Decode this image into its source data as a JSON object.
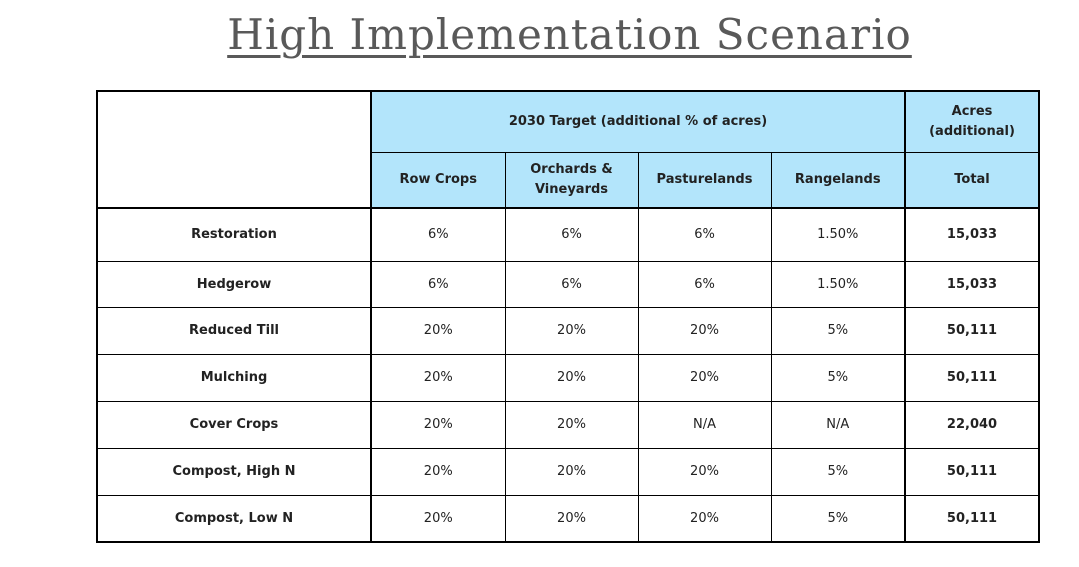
{
  "title": "High Implementation Scenario",
  "table": {
    "group_header": "2030 Target (additional % of acres)",
    "acres_header": "Acres (additional)",
    "columns": [
      "Row Crops",
      "Orchards & Vineyards",
      "Pasturelands",
      "Rangelands",
      "Total"
    ],
    "rows": [
      {
        "label": "Restoration",
        "values": [
          "6%",
          "6%",
          "6%",
          "1.50%"
        ],
        "total": "15,033"
      },
      {
        "label": "Hedgerow",
        "values": [
          "6%",
          "6%",
          "6%",
          "1.50%"
        ],
        "total": "15,033"
      },
      {
        "label": "Reduced Till",
        "values": [
          "20%",
          "20%",
          "20%",
          "5%"
        ],
        "total": "50,111"
      },
      {
        "label": "Mulching",
        "values": [
          "20%",
          "20%",
          "20%",
          "5%"
        ],
        "total": "50,111"
      },
      {
        "label": "Cover Crops",
        "values": [
          "20%",
          "20%",
          "N/A",
          "N/A"
        ],
        "total": "22,040"
      },
      {
        "label": "Compost, High N",
        "values": [
          "20%",
          "20%",
          "20%",
          "5%"
        ],
        "total": "50,111"
      },
      {
        "label": "Compost, Low N",
        "values": [
          "20%",
          "20%",
          "20%",
          "5%"
        ],
        "total": "50,111"
      }
    ]
  },
  "colors": {
    "header_fill": "#b3e5fb",
    "title_text": "#595959",
    "border": "#000000"
  }
}
